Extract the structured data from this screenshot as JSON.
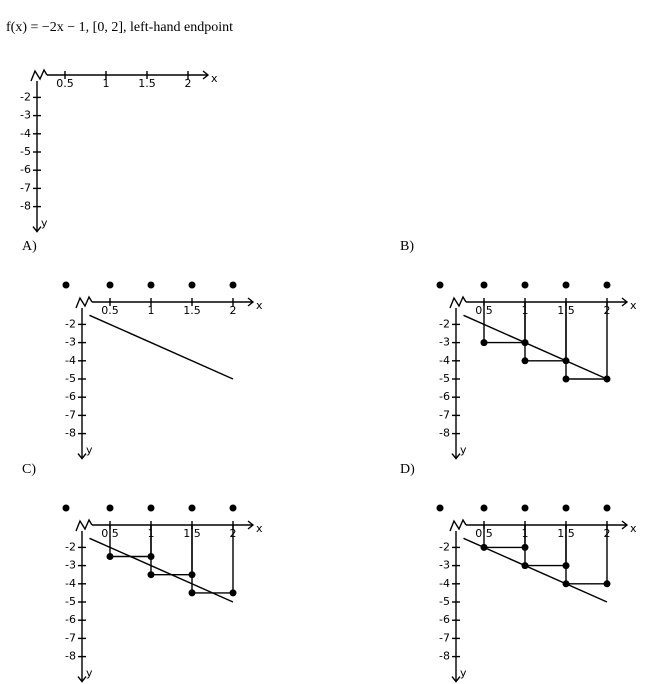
{
  "question": "f(x) = −2x − 1, [0, 2], left-hand endpoint",
  "x_label": "x",
  "y_label": "y",
  "x_ticks": [
    0.5,
    1,
    1.5,
    2
  ],
  "y_ticks": [
    -2,
    -3,
    -4,
    -5,
    -6,
    -7,
    -8
  ],
  "options": [
    {
      "label": "A)",
      "line": [
        [
          0.25,
          -1.5
        ],
        [
          2,
          -5
        ]
      ],
      "bars": []
    },
    {
      "label": "B)",
      "line": [
        [
          0.25,
          -1.5
        ],
        [
          2,
          -5
        ]
      ],
      "bars": [
        [
          0.5,
          1,
          -3
        ],
        [
          1,
          1.5,
          -4
        ],
        [
          1.5,
          2,
          -5
        ]
      ]
    },
    {
      "label": "C)",
      "line": [
        [
          0.25,
          -1.5
        ],
        [
          2,
          -5
        ]
      ],
      "bars": [
        [
          0.5,
          1,
          -2.5
        ],
        [
          1,
          1.5,
          -3.5
        ],
        [
          1.5,
          2,
          -4.5
        ]
      ]
    },
    {
      "label": "D)",
      "line": [
        [
          0.25,
          -1.5
        ],
        [
          2,
          -5
        ]
      ],
      "bars": [
        [
          0.5,
          1,
          -2
        ],
        [
          1,
          1.5,
          -3
        ],
        [
          1.5,
          2,
          -4
        ]
      ]
    }
  ]
}
